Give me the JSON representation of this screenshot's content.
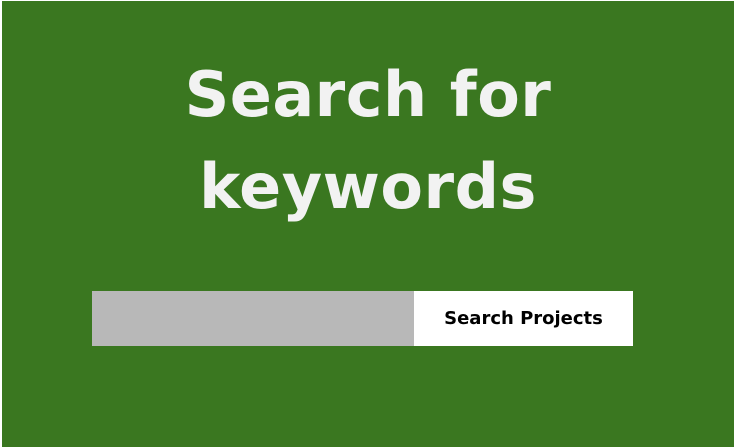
{
  "heading": {
    "line1": "Search for",
    "line2": "keywords"
  },
  "search": {
    "value": "",
    "placeholder": "",
    "button_label": "Search Projects"
  },
  "colors": {
    "background": "#3a7720",
    "heading_text": "#f2f2f2",
    "input_background": "#b8b8b8",
    "button_background": "#ffffff",
    "button_text": "#000000"
  }
}
